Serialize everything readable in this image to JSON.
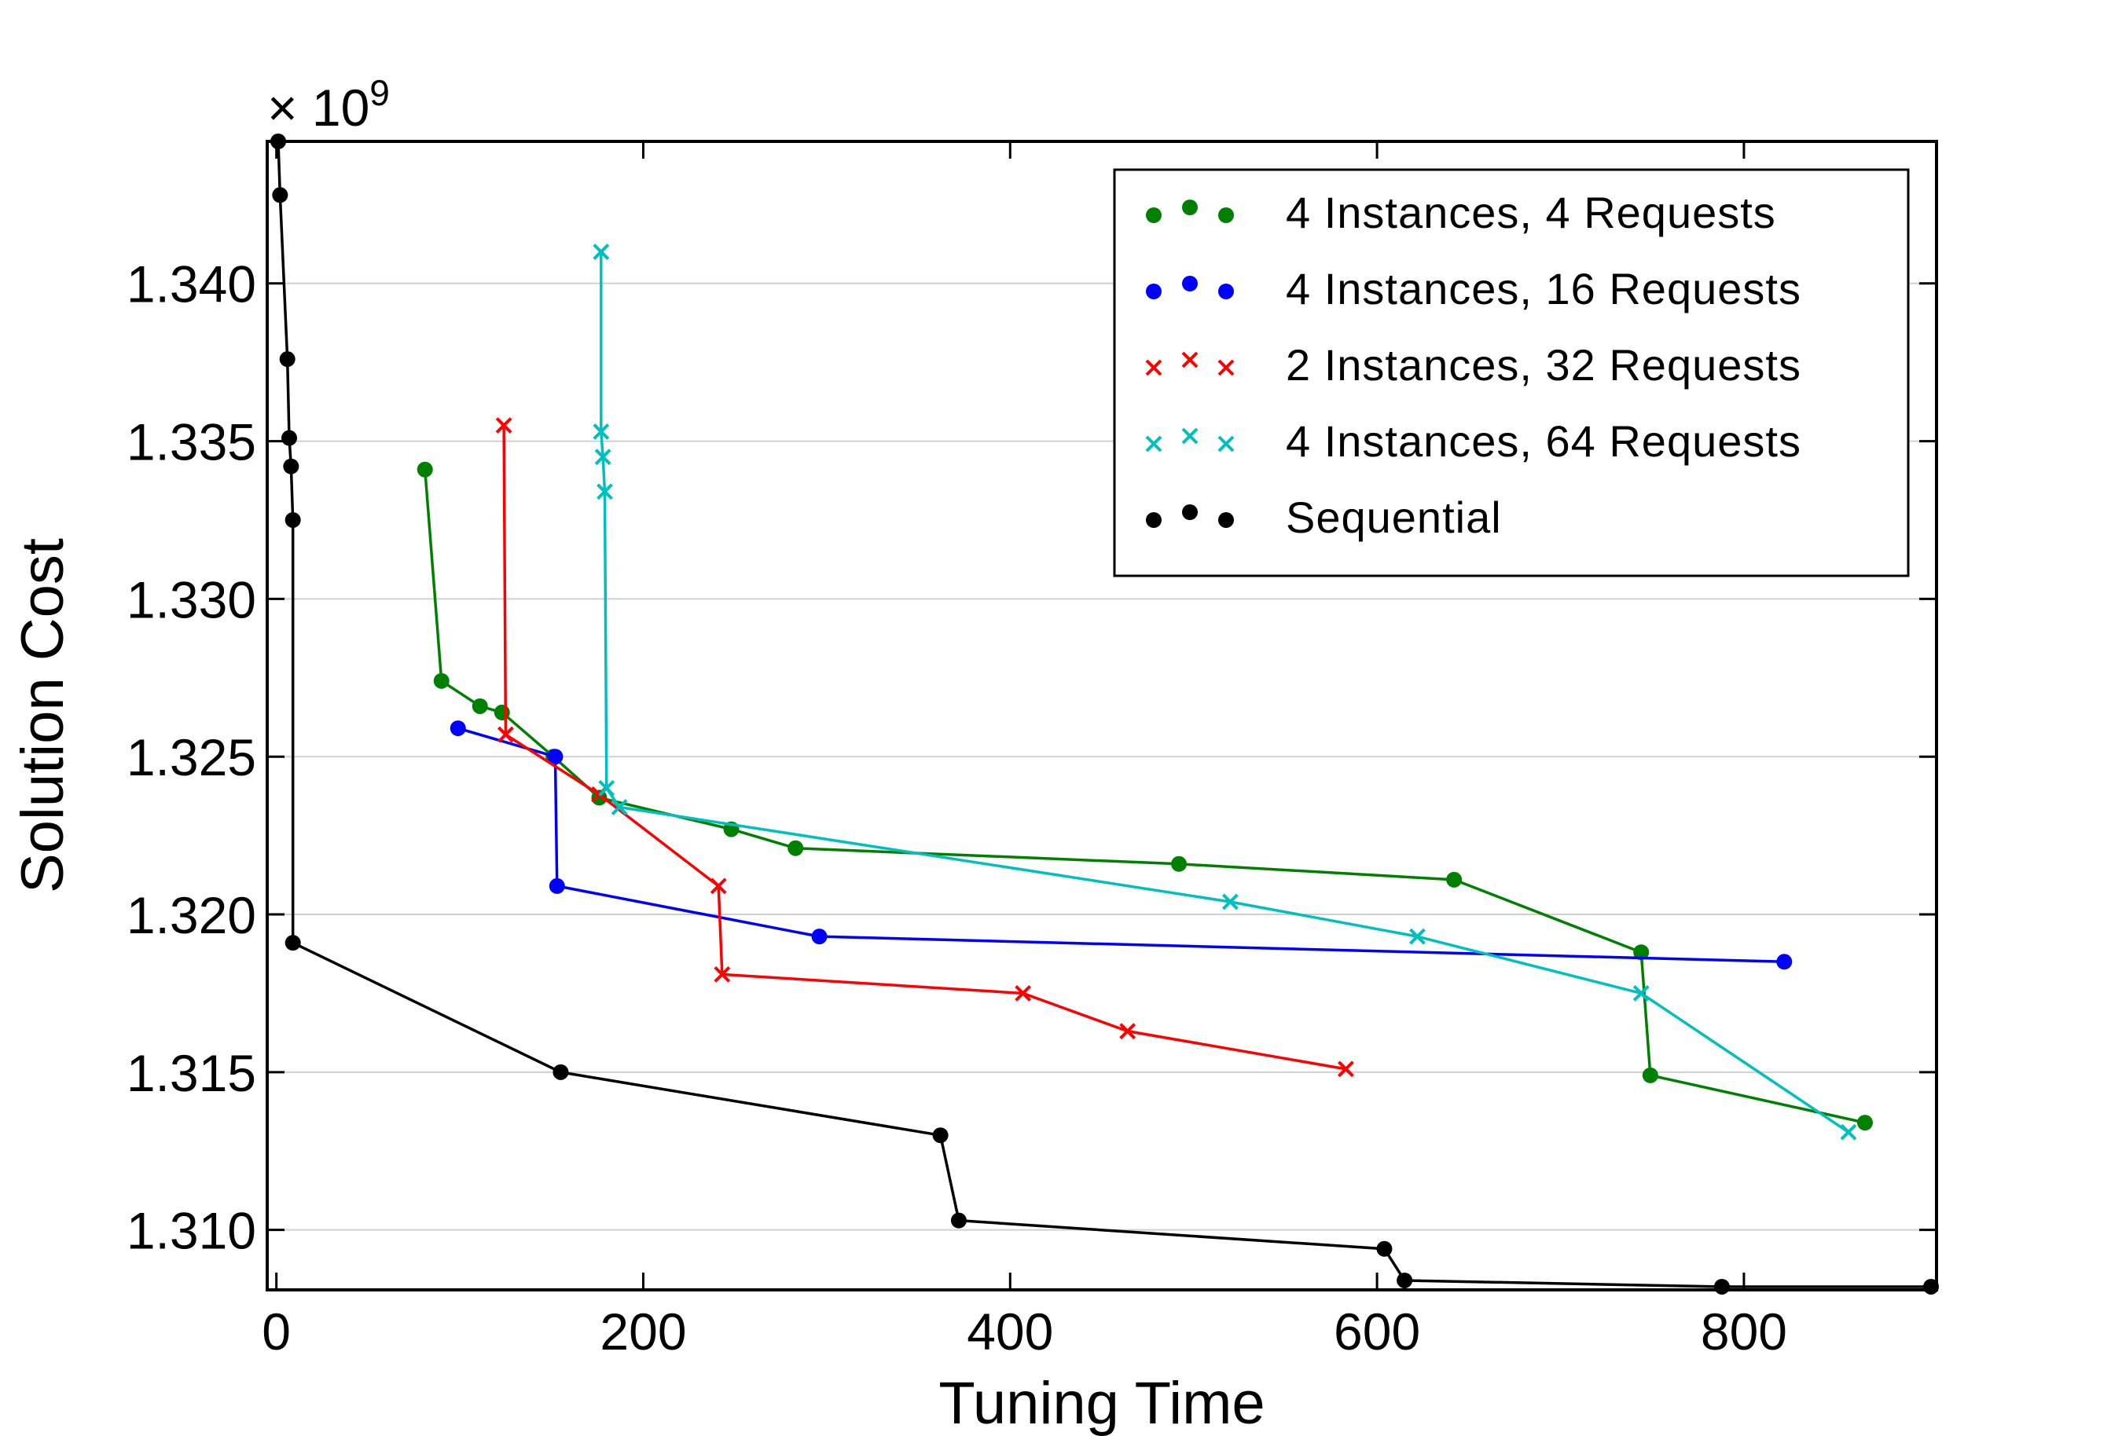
{
  "chart_data": {
    "type": "line",
    "xlabel": "Tuning Time",
    "ylabel": "Solution Cost",
    "y_multiplier": {
      "base": "× 10",
      "exponent": "9"
    },
    "xlim": [
      -5,
      905
    ],
    "ylim": [
      1.3081,
      1.3445
    ],
    "x_ticks": [
      0,
      200,
      400,
      600,
      800
    ],
    "x_tick_labels": [
      "0",
      "200",
      "400",
      "600",
      "800"
    ],
    "y_ticks": [
      1.31,
      1.315,
      1.32,
      1.325,
      1.33,
      1.335,
      1.34
    ],
    "y_tick_labels": [
      "1.310",
      "1.315",
      "1.320",
      "1.325",
      "1.330",
      "1.335",
      "1.340"
    ],
    "grid": "horizontal",
    "legend_position": "top-right",
    "series": [
      {
        "name": "4 Instances, 4 Requests",
        "color": "#008000",
        "marker": "circle",
        "points": [
          [
            81,
            1.3341
          ],
          [
            90,
            1.3274
          ],
          [
            111,
            1.3266
          ],
          [
            123,
            1.3264
          ],
          [
            151,
            1.325
          ],
          [
            176,
            1.3237
          ],
          [
            248,
            1.3227
          ],
          [
            283,
            1.3221
          ],
          [
            492,
            1.3216
          ],
          [
            642,
            1.3211
          ],
          [
            744,
            1.3188
          ],
          [
            749,
            1.3149
          ],
          [
            866,
            1.3134
          ]
        ]
      },
      {
        "name": "4 Instances, 16 Requests",
        "color": "#0000ff",
        "marker": "circle",
        "points": [
          [
            99,
            1.3259
          ],
          [
            152,
            1.325
          ],
          [
            153,
            1.3209
          ],
          [
            296,
            1.3193
          ],
          [
            822,
            1.3185
          ]
        ]
      },
      {
        "name": "2 Instances, 32 Requests",
        "color": "#ff0000",
        "marker": "x",
        "points": [
          [
            124,
            1.3355
          ],
          [
            125,
            1.3257
          ],
          [
            176,
            1.3238
          ],
          [
            241,
            1.3209
          ],
          [
            243,
            1.3181
          ],
          [
            407,
            1.3175
          ],
          [
            464,
            1.3163
          ],
          [
            583,
            1.3151
          ]
        ]
      },
      {
        "name": "4 Instances, 64 Requests",
        "color": "#00bfbf",
        "marker": "x",
        "points": [
          [
            177,
            1.341
          ],
          [
            177,
            1.3353
          ],
          [
            178,
            1.3345
          ],
          [
            179,
            1.3334
          ],
          [
            180,
            1.324
          ],
          [
            187,
            1.3234
          ],
          [
            520,
            1.3204
          ],
          [
            622,
            1.3193
          ],
          [
            744,
            1.3175
          ],
          [
            857,
            1.3131
          ]
        ]
      },
      {
        "name": "Sequential",
        "color": "#000000",
        "marker": "circle",
        "points": [
          [
            1,
            1.3445
          ],
          [
            2,
            1.3428
          ],
          [
            6,
            1.3376
          ],
          [
            7,
            1.3351
          ],
          [
            8,
            1.3342
          ],
          [
            9,
            1.3325
          ],
          [
            9,
            1.3191
          ],
          [
            155,
            1.315
          ],
          [
            362,
            1.313
          ],
          [
            372,
            1.3103
          ],
          [
            604,
            1.3094
          ],
          [
            615,
            1.3084
          ],
          [
            788,
            1.3082
          ],
          [
            902,
            1.3082
          ]
        ]
      }
    ]
  }
}
